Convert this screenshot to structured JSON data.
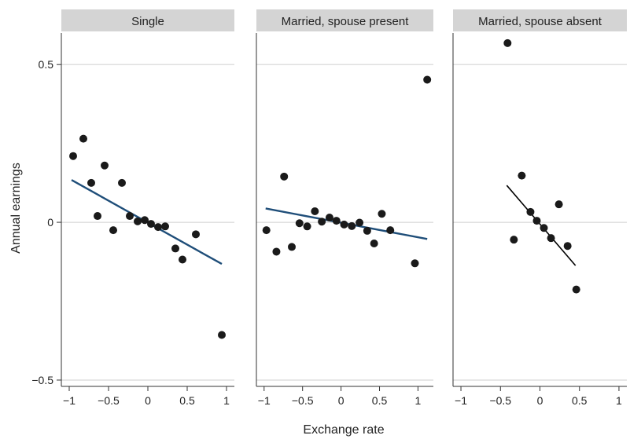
{
  "chart_data": {
    "type": "scatter",
    "xlabel": "Exchange rate",
    "ylabel": "Annual earnings",
    "grid": "horizontal",
    "ylim": [
      -0.52,
      0.6
    ],
    "y_ticks": [
      -0.5,
      0,
      0.5
    ],
    "y_tick_labels": [
      "−0.5",
      "0",
      "0.5"
    ],
    "colors": {
      "strip_background": "#d4d4d4",
      "points": "#1a1a1a",
      "fit_line_blue": "#1f4e79",
      "fit_line_black": "#000000",
      "grid": "#cfcfcf",
      "axis": "#333333"
    },
    "panels": [
      {
        "title": "Single",
        "xlim": [
          -1.1,
          1.1
        ],
        "x_ticks": [
          -1,
          -0.5,
          0,
          0.5,
          1
        ],
        "x_tick_labels": [
          "−1",
          "−0.5",
          "0",
          "0.5",
          "1"
        ],
        "points": [
          {
            "x": -0.95,
            "y": 0.21
          },
          {
            "x": -0.82,
            "y": 0.265
          },
          {
            "x": -0.72,
            "y": 0.125
          },
          {
            "x": -0.64,
            "y": 0.02
          },
          {
            "x": -0.55,
            "y": 0.18
          },
          {
            "x": -0.44,
            "y": -0.025
          },
          {
            "x": -0.33,
            "y": 0.125
          },
          {
            "x": -0.23,
            "y": 0.02
          },
          {
            "x": -0.13,
            "y": 0.003
          },
          {
            "x": -0.04,
            "y": 0.007
          },
          {
            "x": 0.04,
            "y": -0.005
          },
          {
            "x": 0.13,
            "y": -0.015
          },
          {
            "x": 0.22,
            "y": -0.013
          },
          {
            "x": 0.35,
            "y": -0.083
          },
          {
            "x": 0.44,
            "y": -0.118
          },
          {
            "x": 0.61,
            "y": -0.038
          },
          {
            "x": 0.94,
            "y": -0.357
          }
        ],
        "fit": {
          "x": [
            -0.97,
            0.94
          ],
          "y": [
            0.134,
            -0.132
          ],
          "color": "#1f4e79"
        }
      },
      {
        "title": "Married, spouse present",
        "xlim": [
          -1.1,
          1.2
        ],
        "x_ticks": [
          -1,
          -0.5,
          0,
          0.5,
          1
        ],
        "x_tick_labels": [
          "−1",
          "−0.5",
          "0",
          "0.5",
          "1"
        ],
        "points": [
          {
            "x": -0.97,
            "y": -0.025
          },
          {
            "x": -0.84,
            "y": -0.093
          },
          {
            "x": -0.74,
            "y": 0.145
          },
          {
            "x": -0.64,
            "y": -0.078
          },
          {
            "x": -0.54,
            "y": -0.003
          },
          {
            "x": -0.44,
            "y": -0.013
          },
          {
            "x": -0.34,
            "y": 0.035
          },
          {
            "x": -0.25,
            "y": 0.002
          },
          {
            "x": -0.15,
            "y": 0.015
          },
          {
            "x": -0.06,
            "y": 0.005
          },
          {
            "x": 0.04,
            "y": -0.007
          },
          {
            "x": 0.14,
            "y": -0.012
          },
          {
            "x": 0.24,
            "y": -0.001
          },
          {
            "x": 0.34,
            "y": -0.027
          },
          {
            "x": 0.43,
            "y": -0.067
          },
          {
            "x": 0.53,
            "y": 0.027
          },
          {
            "x": 0.64,
            "y": -0.025
          },
          {
            "x": 0.96,
            "y": -0.13
          },
          {
            "x": 1.12,
            "y": 0.452
          }
        ],
        "fit": {
          "x": [
            -0.98,
            1.12
          ],
          "y": [
            0.044,
            -0.053
          ],
          "color": "#1f4e79"
        }
      },
      {
        "title": "Married, spouse absent",
        "xlim": [
          -1.1,
          1.1
        ],
        "x_ticks": [
          -1,
          -0.5,
          0,
          0.5,
          1
        ],
        "x_tick_labels": [
          "−1",
          "−0.5",
          "0",
          "0.5",
          "1"
        ],
        "points": [
          {
            "x": -0.41,
            "y": 0.568
          },
          {
            "x": -0.33,
            "y": -0.055
          },
          {
            "x": -0.23,
            "y": 0.148
          },
          {
            "x": -0.12,
            "y": 0.033
          },
          {
            "x": -0.04,
            "y": 0.005
          },
          {
            "x": 0.05,
            "y": -0.018
          },
          {
            "x": 0.14,
            "y": -0.05
          },
          {
            "x": 0.24,
            "y": 0.057
          },
          {
            "x": 0.35,
            "y": -0.075
          },
          {
            "x": 0.46,
            "y": -0.213
          }
        ],
        "fit": {
          "x": [
            -0.42,
            0.45
          ],
          "y": [
            0.117,
            -0.137
          ],
          "color": "#000000"
        }
      }
    ]
  }
}
